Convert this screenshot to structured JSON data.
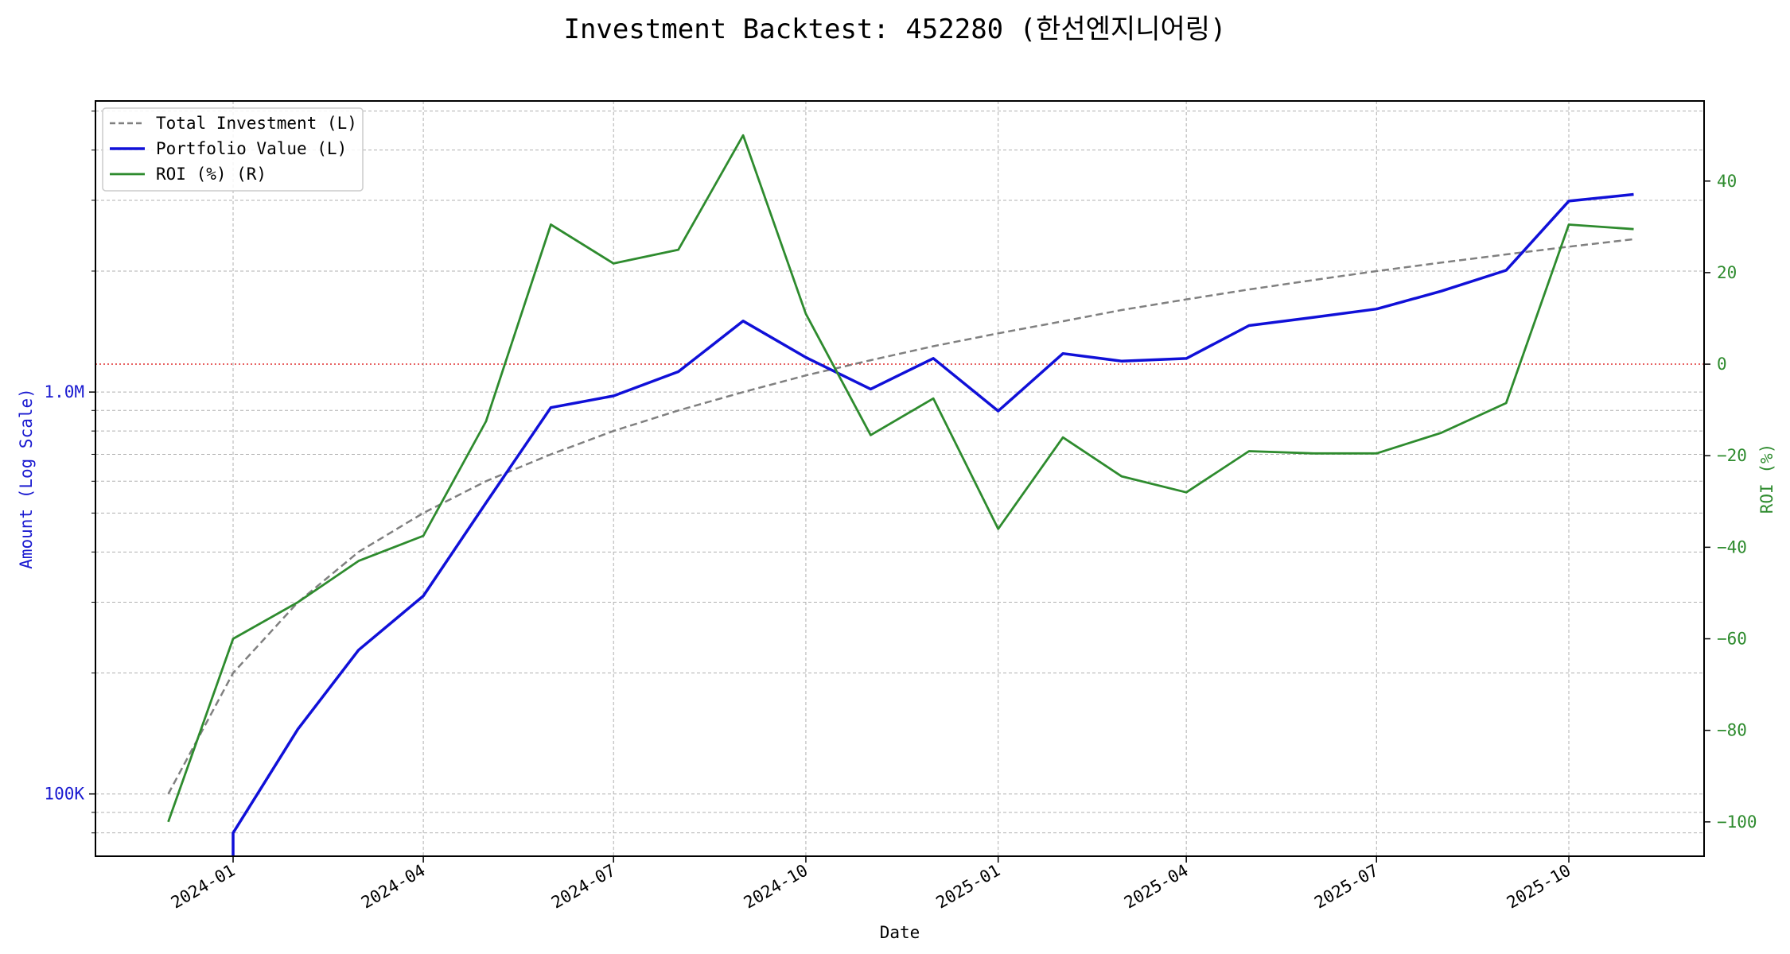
{
  "chart_data": {
    "type": "line",
    "title": "Investment Backtest: 452280 (한선엔지니어링)",
    "xlabel": "Date",
    "ylabel_left": "Amount (Log Scale)",
    "ylabel_right": "ROI (%)",
    "left_axis_scale": "log",
    "left_ylim": [
      70000,
      5300000
    ],
    "right_ylim": [
      -107.5,
      57.5
    ],
    "x_tick_labels": [
      "2024-01",
      "2024-04",
      "2024-07",
      "2024-10",
      "2025-01",
      "2025-04",
      "2025-07",
      "2025-10"
    ],
    "x_ticks": [
      "2024-01-01",
      "2024-04-01",
      "2024-07-01",
      "2024-10-01",
      "2025-01-01",
      "2025-04-01",
      "2025-07-01",
      "2025-10-01"
    ],
    "left_tick_labels": [
      "100K",
      "1.0M"
    ],
    "left_ticks": [
      100000,
      1000000
    ],
    "right_ticks": [
      -100,
      -80,
      -60,
      -40,
      -20,
      0,
      20,
      40
    ],
    "right_tick_labels": [
      "−100",
      "−80",
      "−60",
      "−40",
      "−20",
      "0",
      "20",
      "40"
    ],
    "grid": true,
    "legend_position": "top-left",
    "zero_line": {
      "axis": "right",
      "value": 0,
      "color": "#e03030"
    },
    "colors": {
      "left_axis": "#1a1ad0",
      "right_axis": "#2e8b2e",
      "total_investment": "#808080",
      "portfolio_value": "#1010d8",
      "roi": "#2e8b2e"
    },
    "series": [
      {
        "name": "Total Investment (L)",
        "axis": "left",
        "style": "dashed",
        "x": [
          "2023-12-01",
          "2024-01-01",
          "2024-02-01",
          "2024-03-01",
          "2024-04-01",
          "2024-05-01",
          "2024-06-01",
          "2024-07-01",
          "2024-08-01",
          "2024-09-01",
          "2024-10-01",
          "2024-11-01",
          "2024-12-01",
          "2025-01-01",
          "2025-02-01",
          "2025-03-01",
          "2025-04-01",
          "2025-05-01",
          "2025-06-01",
          "2025-07-01",
          "2025-08-01",
          "2025-09-01",
          "2025-10-01",
          "2025-11-01"
        ],
        "y": [
          100000,
          200000,
          300000,
          400000,
          500000,
          600000,
          700000,
          800000,
          900000,
          1000000,
          1100000,
          1200000,
          1300000,
          1400000,
          1500000,
          1600000,
          1700000,
          1800000,
          1900000,
          2000000,
          2100000,
          2200000,
          2300000,
          2400000
        ]
      },
      {
        "name": "Portfolio Value (L)",
        "axis": "left",
        "style": "solid",
        "x": [
          "2024-01-01",
          "2024-02-01",
          "2024-03-01",
          "2024-04-01",
          "2024-05-01",
          "2024-06-01",
          "2024-07-01",
          "2024-08-01",
          "2024-09-01",
          "2024-10-01",
          "2024-11-01",
          "2024-12-01",
          "2025-01-01",
          "2025-02-01",
          "2025-03-01",
          "2025-04-01",
          "2025-05-01",
          "2025-06-01",
          "2025-07-01",
          "2025-08-01",
          "2025-09-01",
          "2025-10-01",
          "2025-11-01"
        ],
        "y": [
          80000,
          145000,
          228000,
          311000,
          530000,
          915000,
          978000,
          1124000,
          1502000,
          1220000,
          1017000,
          1213000,
          897000,
          1247000,
          1194000,
          1212000,
          1464000,
          1535000,
          1609000,
          1783000,
          2009000,
          2987000,
          3103000
        ]
      },
      {
        "name": "ROI (%) (R)",
        "axis": "right",
        "style": "solid",
        "x": [
          "2023-12-01",
          "2024-01-01",
          "2024-02-01",
          "2024-03-01",
          "2024-04-01",
          "2024-05-01",
          "2024-06-01",
          "2024-07-01",
          "2024-08-01",
          "2024-09-01",
          "2024-10-01",
          "2024-11-01",
          "2024-12-01",
          "2025-01-01",
          "2025-02-01",
          "2025-03-01",
          "2025-04-01",
          "2025-05-01",
          "2025-06-01",
          "2025-07-01",
          "2025-08-01",
          "2025-09-01",
          "2025-10-01",
          "2025-11-01"
        ],
        "y": [
          -100,
          -60,
          -52,
          -43,
          -37.5,
          -12.5,
          30.5,
          22,
          25,
          50,
          11,
          -15.5,
          -7.5,
          -36,
          -16,
          -24.5,
          -28,
          -19,
          -19.5,
          -19.5,
          -15,
          -8.5,
          30.5,
          29.5
        ]
      }
    ]
  }
}
